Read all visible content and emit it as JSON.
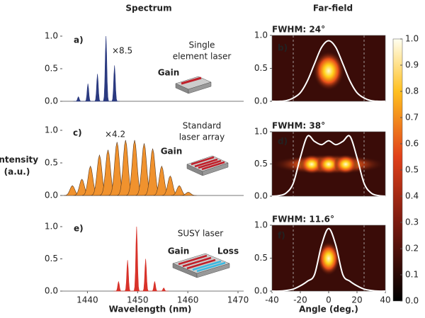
{
  "column_titles": [
    "Spectrum",
    "Far-field"
  ],
  "y_label": [
    "Intensity",
    "(a.u.)"
  ],
  "chart_data": [
    {
      "type": "spectrum",
      "panel": "a)",
      "x": [
        1438.2,
        1440.1,
        1442,
        1443.7,
        1445.4
      ],
      "values": [
        0.07,
        0.27,
        0.42,
        1.0,
        0.55
      ],
      "color": "#2b3a80",
      "xlim": [
        1435,
        1470
      ],
      "ylim": [
        0,
        1
      ],
      "yticks": [
        {
          "value": 0,
          "label": "0.0"
        },
        0.5,
        {
          "value": 1,
          "label": "1.0"
        }
      ],
      "annotations": [
        "×8.5",
        "Single",
        "element laser",
        "Gain"
      ]
    },
    {
      "type": "spectrum",
      "panel": "c)",
      "x": [
        1437,
        1438.9,
        1440.6,
        1442.4,
        1444.1,
        1445.9,
        1447.6,
        1449.4,
        1451.3,
        1453,
        1454.8,
        1456.5,
        1458.3,
        1460.1
      ],
      "values": [
        0.15,
        0.25,
        0.45,
        0.62,
        0.7,
        0.82,
        0.85,
        0.85,
        0.8,
        0.72,
        0.45,
        0.3,
        0.15,
        0.05
      ],
      "color": "#f0922e",
      "xlim": [
        1435,
        1470
      ],
      "ylim": [
        0,
        1
      ],
      "yticks": [
        {
          "value": 0,
          "label": "0.0"
        },
        0.5,
        {
          "value": 1,
          "label": "1.0"
        }
      ],
      "annotations": [
        "×4.2",
        "Standard",
        "laser array",
        "Gain"
      ]
    },
    {
      "type": "spectrum",
      "panel": "e)",
      "x": [
        1446.2,
        1448,
        1449.8,
        1451.6,
        1453.4,
        1455.2
      ],
      "values": [
        0.15,
        0.48,
        1.0,
        0.5,
        0.15,
        0.05
      ],
      "color": "#d8322a",
      "xlim": [
        1435,
        1470
      ],
      "ylim": [
        0,
        1
      ],
      "yticks": [
        {
          "value": 0,
          "label": "0.0"
        },
        0.5,
        {
          "value": 1,
          "label": "1.0"
        }
      ],
      "xticks": [
        1440,
        1450,
        1460,
        1470
      ],
      "xlabel": "Wavelength (nm)",
      "annotations": [
        "SUSY laser",
        "Gain",
        "Loss"
      ]
    },
    {
      "type": "farfield",
      "panel": "b)",
      "title": "FWHM: 24°",
      "color": "#ffffff",
      "x": [
        -40,
        -35,
        -30,
        -25,
        -20,
        -15,
        -10,
        -5,
        0,
        5,
        10,
        15,
        20,
        25,
        30,
        35,
        40
      ],
      "values": [
        0,
        0,
        0.01,
        0.05,
        0.13,
        0.31,
        0.57,
        0.82,
        0.92,
        0.82,
        0.57,
        0.31,
        0.13,
        0.05,
        0.01,
        0,
        0
      ],
      "xlim": [
        -40,
        40
      ],
      "ylim": [
        0,
        1
      ],
      "yticks": [
        {
          "value": 0,
          "label": "0.0"
        },
        0.5,
        {
          "value": 1,
          "label": "1.0"
        }
      ]
    },
    {
      "type": "farfield",
      "panel": "d)",
      "title": "FWHM: 38°",
      "color": "#ffffff",
      "x": [
        -40,
        -35,
        -30,
        -25,
        -20,
        -15,
        -10,
        -5,
        0,
        5,
        10,
        15,
        20,
        25,
        30,
        35,
        40
      ],
      "values": [
        0,
        0.01,
        0.05,
        0.2,
        0.6,
        0.93,
        0.85,
        0.8,
        0.86,
        0.8,
        0.85,
        0.93,
        0.6,
        0.2,
        0.05,
        0.01,
        0
      ],
      "xlim": [
        -40,
        40
      ],
      "ylim": [
        0,
        1
      ],
      "yticks": [
        {
          "value": 0,
          "label": "0.0"
        },
        0.5,
        {
          "value": 1,
          "label": "1.0"
        }
      ]
    },
    {
      "type": "farfield",
      "panel": "f)",
      "title": "FWHM: 11.6°",
      "color": "#ffffff",
      "x": [
        -40,
        -35,
        -30,
        -25,
        -20,
        -15,
        -10,
        -5,
        0,
        5,
        10,
        15,
        20,
        25,
        30,
        35,
        40
      ],
      "values": [
        0,
        0,
        0.01,
        0.03,
        0.08,
        0.15,
        0.25,
        0.7,
        0.95,
        0.7,
        0.25,
        0.15,
        0.08,
        0.03,
        0.01,
        0,
        0
      ],
      "xlim": [
        -40,
        40
      ],
      "ylim": [
        0,
        1
      ],
      "yticks": [
        {
          "value": 0,
          "label": "0.0"
        },
        0.5,
        {
          "value": 1,
          "label": "1.0"
        }
      ],
      "xticks": [
        -40,
        -20,
        0,
        20,
        40
      ],
      "xlabel": "Angle (deg.)"
    }
  ],
  "colorbar": {
    "lim": [
      0,
      1
    ],
    "ticks": [
      {
        "value": 0,
        "label": "0.0"
      },
      0.1,
      0.2,
      0.3,
      0.4,
      0.5,
      0.6,
      0.7,
      0.8,
      0.9,
      {
        "value": 1,
        "label": "1.0"
      }
    ]
  }
}
